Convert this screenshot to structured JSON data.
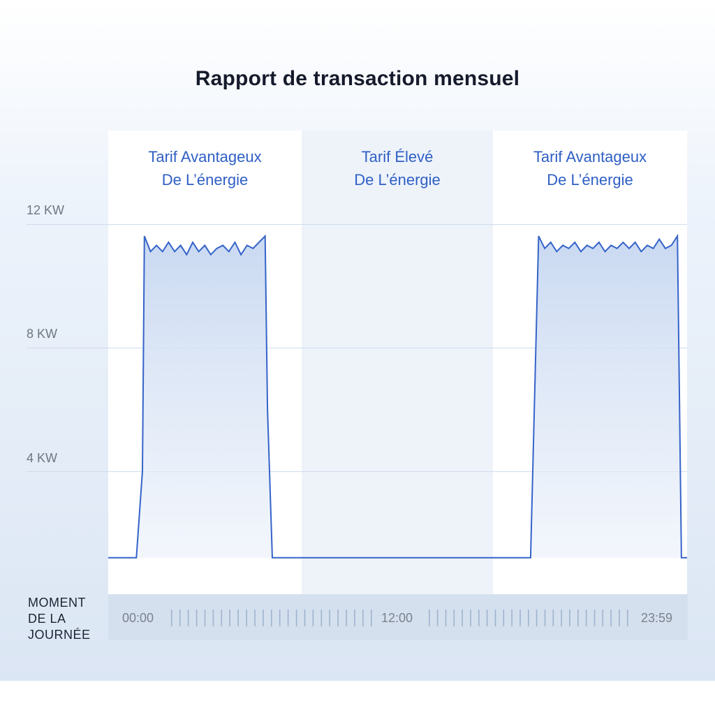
{
  "title": "Rapport de transaction mensuel",
  "zones": [
    {
      "line1": "Tarif Avantageux",
      "line2": "De L’énergie",
      "style": "light"
    },
    {
      "line1": "Tarif Élevé",
      "line2": "De L’énergie",
      "style": "shaded"
    },
    {
      "line1": "Tarif Avantageux",
      "line2": "De L’énergie",
      "style": "light"
    }
  ],
  "y_ticks": [
    "12 KW",
    "8 KW",
    "4 KW"
  ],
  "x_axis": {
    "title_lines": [
      "MOMENT",
      "DE LA",
      "JOURNÉE"
    ],
    "labels": [
      "00:00",
      "12:00",
      "23:59"
    ]
  },
  "colors": {
    "line": "#3563c9",
    "fill_top": "#c9d9f1",
    "fill_bottom": "#eaf0fa",
    "zone_label": "#2f5fc4",
    "tick_mark": "#9fb3cf"
  },
  "chart_data": {
    "type": "area",
    "title": "Rapport de transaction mensuel",
    "xlabel": "MOMENT DE LA JOURNÉE",
    "ylabel": "",
    "y_unit": "KW",
    "yticks": [
      4,
      8,
      12
    ],
    "xlim": [
      "00:00",
      "23:59"
    ],
    "ylim": [
      0,
      15
    ],
    "grid": true,
    "series": [
      {
        "x": [
          "00:00",
          "01:10",
          "01:25",
          "01:30",
          "01:45",
          "02:00",
          "02:15",
          "02:30",
          "02:45",
          "03:00",
          "03:15",
          "03:30",
          "03:45",
          "04:00",
          "04:15",
          "04:30",
          "04:45",
          "05:00",
          "05:15",
          "05:30",
          "05:45",
          "06:00",
          "06:15",
          "06:30",
          "06:36",
          "06:48",
          "07:00",
          "08:00",
          "10:00",
          "12:00",
          "14:00",
          "16:00",
          "17:00",
          "17:30",
          "17:50",
          "18:05",
          "18:20",
          "18:35",
          "18:50",
          "19:05",
          "19:20",
          "19:35",
          "19:50",
          "20:05",
          "20:20",
          "20:35",
          "20:50",
          "21:05",
          "21:20",
          "21:35",
          "21:50",
          "22:05",
          "22:20",
          "22:35",
          "22:50",
          "23:05",
          "23:20",
          "23:35",
          "23:45",
          "23:59"
        ],
        "values": [
          1.2,
          1.2,
          4.0,
          11.6,
          11.1,
          11.3,
          11.1,
          11.4,
          11.1,
          11.3,
          11.0,
          11.4,
          11.1,
          11.3,
          11.0,
          11.2,
          11.3,
          11.1,
          11.4,
          11.0,
          11.3,
          11.2,
          11.4,
          11.6,
          6.0,
          1.2,
          1.2,
          1.2,
          1.2,
          1.2,
          1.2,
          1.2,
          1.2,
          1.2,
          11.6,
          11.2,
          11.4,
          11.1,
          11.3,
          11.2,
          11.4,
          11.1,
          11.3,
          11.2,
          11.4,
          11.1,
          11.3,
          11.2,
          11.4,
          11.2,
          11.4,
          11.1,
          11.3,
          11.2,
          11.5,
          11.2,
          11.3,
          11.6,
          1.2,
          1.2
        ]
      }
    ]
  }
}
